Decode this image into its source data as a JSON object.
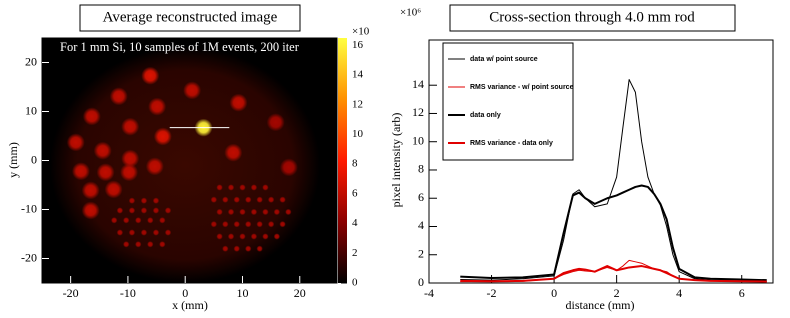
{
  "chart_data": [
    {
      "type": "heatmap",
      "title": "Average reconstructed image",
      "annotation": "For 1 mm Si, 10 samples of 1M events, 200 iter",
      "xlabel": "x (mm)",
      "ylabel": "y (mm)",
      "xlim": [
        -25,
        26.5
      ],
      "ylim": [
        -25,
        25
      ],
      "xticks": [
        -20,
        -10,
        0,
        10,
        20
      ],
      "yticks": [
        -20,
        -10,
        0,
        10,
        20
      ],
      "zlim": [
        0,
        16.5
      ],
      "zticks": [
        0,
        2,
        4,
        6,
        8,
        10,
        12,
        14,
        16
      ],
      "zmultiplier": "×10",
      "colormap": [
        "#000000",
        "#8b0000",
        "#ff1a00",
        "#ff9000",
        "#ffff40"
      ],
      "rods": {
        "x": [
          -6.1,
          1.2,
          9.3,
          -11.6,
          -4.9,
          -16.3,
          -9.6,
          -3.9,
          3.2,
          15.8,
          -19.1,
          -14.4,
          -9.6,
          8.4,
          18.1,
          -18.2,
          -13.9,
          -9.8,
          -5.3,
          -16.5,
          -12.5,
          -16.5
        ],
        "y": [
          17.3,
          14.3,
          11.8,
          13.1,
          11,
          9,
          6.9,
          4.9,
          6.7,
          7.8,
          3.7,
          2,
          0.4,
          1.6,
          -1.4,
          -2.2,
          -2.4,
          -2.4,
          -1.2,
          -6.1,
          -5.9,
          -10.2
        ],
        "intensity": [
          7,
          6,
          6,
          6,
          6,
          6,
          6,
          7,
          16,
          5,
          6,
          6,
          6,
          6,
          5,
          6,
          6,
          6,
          6,
          6,
          6,
          6
        ]
      },
      "spots": {
        "x": [
          -9.3,
          -7.2,
          -5.1,
          -11.4,
          -9.3,
          -7.2,
          -5.1,
          -3.0,
          -12.4,
          -10.3,
          -8.2,
          -6.1,
          -4.0,
          -11.4,
          -9.3,
          -7.2,
          -5.1,
          -3.0,
          -10.3,
          -8.2,
          -6.1,
          -4.0,
          6,
          8,
          10,
          12,
          14,
          5,
          7,
          9,
          11,
          13,
          15,
          17,
          6,
          8,
          10,
          12,
          14,
          16,
          18,
          5,
          7,
          9,
          11,
          13,
          15,
          17,
          6,
          8,
          10,
          12,
          14,
          16,
          7,
          9,
          11,
          13
        ],
        "y": [
          -8.2,
          -8.2,
          -8.2,
          -10.2,
          -10.2,
          -10.2,
          -10.2,
          -10.2,
          -12.2,
          -12.2,
          -12.2,
          -12.2,
          -12.2,
          -14.7,
          -14.7,
          -14.7,
          -14.7,
          -14.7,
          -17.1,
          -17.1,
          -17.1,
          -17.1,
          -5.5,
          -5.5,
          -5.5,
          -5.5,
          -5.5,
          -8,
          -8,
          -8,
          -8,
          -8,
          -8,
          -8,
          -10.5,
          -10.5,
          -10.5,
          -10.5,
          -10.5,
          -10.5,
          -10.5,
          -13,
          -13,
          -13,
          -13,
          -13,
          -13,
          -13,
          -15.5,
          -15.5,
          -15.5,
          -15.5,
          -15.5,
          -15.5,
          -18,
          -18,
          -18,
          -18
        ],
        "intensity": [
          5,
          5,
          5,
          5,
          5,
          5,
          5,
          5,
          5,
          5,
          5,
          5,
          5,
          5,
          5,
          5,
          5,
          5,
          5,
          5,
          5,
          5,
          5,
          5,
          5,
          5,
          5,
          5,
          5,
          5,
          5,
          5,
          5,
          5,
          5,
          5,
          5,
          5,
          5,
          5,
          5,
          5,
          5,
          5,
          5,
          5,
          5,
          5,
          5,
          5,
          5,
          5,
          5,
          5,
          5,
          5,
          5,
          5
        ]
      },
      "profile_line": {
        "x": [
          -2.7,
          7.7
        ],
        "y": [
          6.7,
          6.7
        ],
        "color": "#ffffff"
      }
    },
    {
      "type": "line",
      "title": "Cross-section through 4.0 mm rod",
      "xlabel": "distance (mm)",
      "ylabel": "pixel intensity (arb)",
      "ymultiplier": "×10⁶",
      "xlim": [
        -4,
        7
      ],
      "ylim": [
        0,
        17.2
      ],
      "xticks": [
        -4,
        -2,
        0,
        2,
        4,
        6
      ],
      "yticks": [
        0,
        2,
        4,
        6,
        8,
        10,
        12,
        14
      ],
      "legend": "top-left",
      "x": [
        -3,
        -2,
        -1,
        0,
        0.3,
        0.6,
        0.8,
        1.0,
        1.3,
        1.7,
        2.0,
        2.2,
        2.4,
        2.6,
        2.8,
        3.0,
        3.2,
        3.4,
        3.6,
        3.8,
        4.0,
        4.5,
        5,
        6,
        6.8
      ],
      "series": [
        {
          "name": "data w/ point source",
          "color": "#000000",
          "width": 1,
          "values": [
            0.25,
            0.2,
            0.3,
            0.5,
            3,
            6.3,
            6.6,
            6.0,
            5.4,
            5.6,
            7.5,
            11,
            14.4,
            13.5,
            10,
            7.5,
            6.3,
            5.5,
            4,
            2,
            0.8,
            0.3,
            0.2,
            0.15,
            0.1
          ]
        },
        {
          "name": "RMS variance - w/ point source",
          "color": "#e00000",
          "width": 1,
          "values": [
            0.1,
            0.1,
            0.12,
            0.3,
            0.6,
            0.8,
            0.9,
            0.85,
            0.8,
            1.1,
            0.9,
            1.2,
            1.6,
            1.5,
            1.4,
            1.2,
            1.0,
            0.9,
            0.8,
            0.5,
            0.3,
            0.2,
            0.15,
            0.12,
            0.1
          ]
        },
        {
          "name": "data only",
          "color": "#000000",
          "width": 2,
          "values": [
            0.45,
            0.35,
            0.4,
            0.6,
            3.5,
            6.2,
            6.4,
            6.0,
            5.6,
            6.0,
            6.2,
            6.4,
            6.6,
            6.8,
            6.9,
            6.8,
            6.3,
            5.6,
            4.5,
            2.5,
            1.0,
            0.4,
            0.3,
            0.25,
            0.2
          ]
        },
        {
          "name": "RMS variance - data only",
          "color": "#e00000",
          "width": 2,
          "values": [
            0.15,
            0.12,
            0.15,
            0.3,
            0.7,
            0.9,
            1.0,
            0.95,
            0.8,
            1.2,
            0.9,
            1.0,
            1.1,
            1.15,
            1.2,
            1.1,
            1.0,
            0.9,
            0.7,
            0.5,
            0.3,
            0.2,
            0.15,
            0.12,
            0.1
          ]
        }
      ]
    }
  ]
}
